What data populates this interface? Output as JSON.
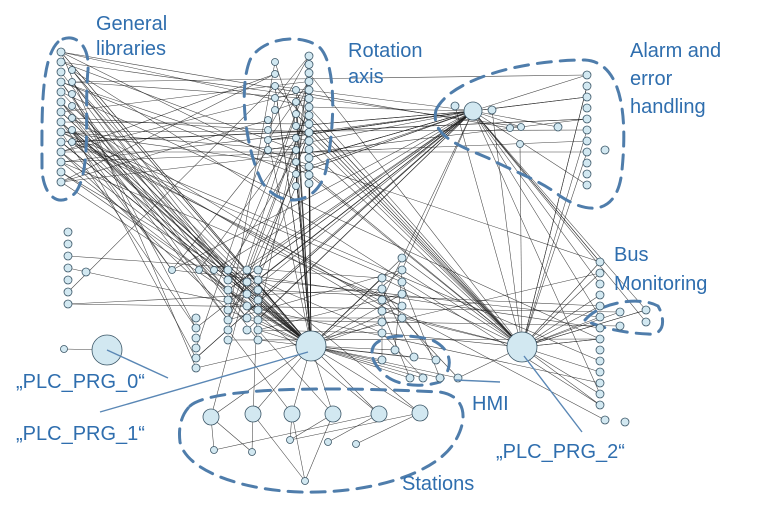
{
  "diagram": {
    "clusters": [
      {
        "id": "general",
        "lines": [
          "General",
          "libraries"
        ]
      },
      {
        "id": "rotation",
        "lines": [
          "Rotation",
          "axis"
        ]
      },
      {
        "id": "alarm",
        "lines": [
          "Alarm and",
          "error",
          "handling"
        ]
      },
      {
        "id": "bus",
        "lines": [
          "Bus",
          "Monitoring"
        ]
      },
      {
        "id": "hmi",
        "lines": [
          "HMI"
        ]
      },
      {
        "id": "stations",
        "lines": [
          "Stations"
        ]
      }
    ],
    "programs": [
      {
        "id": "plc0",
        "label": "„PLC_PRG_0“"
      },
      {
        "id": "plc1",
        "label": "„PLC_PRG_1“"
      },
      {
        "id": "plc2",
        "label": "„PLC_PRG_2“"
      }
    ],
    "colors": {
      "node_fill": "#d2e8f1",
      "node_stroke": "#3a5566",
      "edge": "#222222",
      "cluster_outline": "#4f7dab",
      "label": "#2f6eae"
    }
  }
}
